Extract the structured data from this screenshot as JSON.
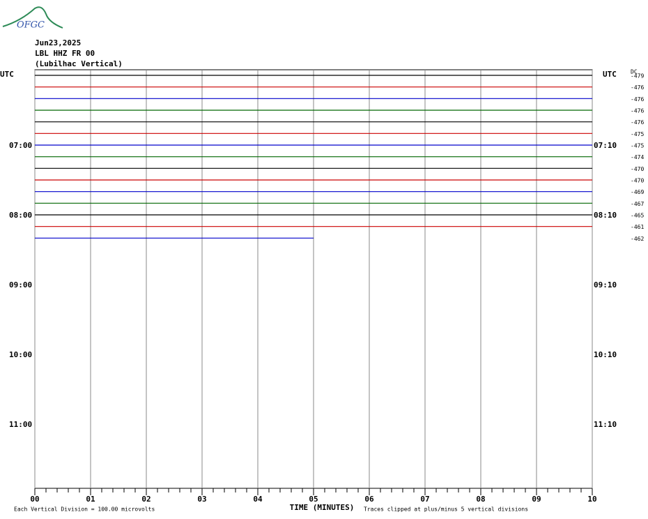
{
  "logo": "OFGC",
  "header": {
    "date": "Jun23,2025",
    "station": "LBL HHZ FR 00",
    "location": "(Lubilhac Vertical)"
  },
  "chart_data": {
    "type": "helicorder",
    "x_label": "TIME (MINUTES)",
    "xlim": [
      0,
      10
    ],
    "xticks": [
      {
        "value": 0,
        "label": "00"
      },
      {
        "value": 1,
        "label": "01"
      },
      {
        "value": 2,
        "label": "02"
      },
      {
        "value": 3,
        "label": "03"
      },
      {
        "value": 4,
        "label": "04"
      },
      {
        "value": 5,
        "label": "05"
      },
      {
        "value": 6,
        "label": "06"
      },
      {
        "value": 7,
        "label": "07"
      },
      {
        "value": 8,
        "label": "08"
      },
      {
        "value": 9,
        "label": "09"
      },
      {
        "value": 10,
        "label": "10"
      }
    ],
    "minor_tick_step": 0.2,
    "grid": true,
    "left_axis_label": "UTC",
    "right_axis_label": "UTC",
    "dc_label": "DC",
    "left_times": [
      "07:00",
      "08:00",
      "09:00",
      "10:00",
      "11:00"
    ],
    "right_times": [
      "07:10",
      "08:10",
      "09:10",
      "10:10",
      "11:10"
    ],
    "colors": [
      "#000000",
      "#cc0000",
      "#0000cc",
      "#006600"
    ],
    "dc": [
      -479,
      -476,
      -476,
      -476,
      -476,
      -475,
      -475,
      -474,
      -470,
      -470,
      -469,
      -467,
      -465,
      -461,
      -462
    ],
    "trace_end": [
      10,
      10,
      10,
      10,
      10,
      10,
      10,
      10,
      10,
      10,
      10,
      10,
      10,
      10,
      5
    ],
    "scale_note": "Each Vertical Division =  100.00 microvolts",
    "clip_note": "Traces clipped at plus/minus 5 vertical divisions"
  }
}
